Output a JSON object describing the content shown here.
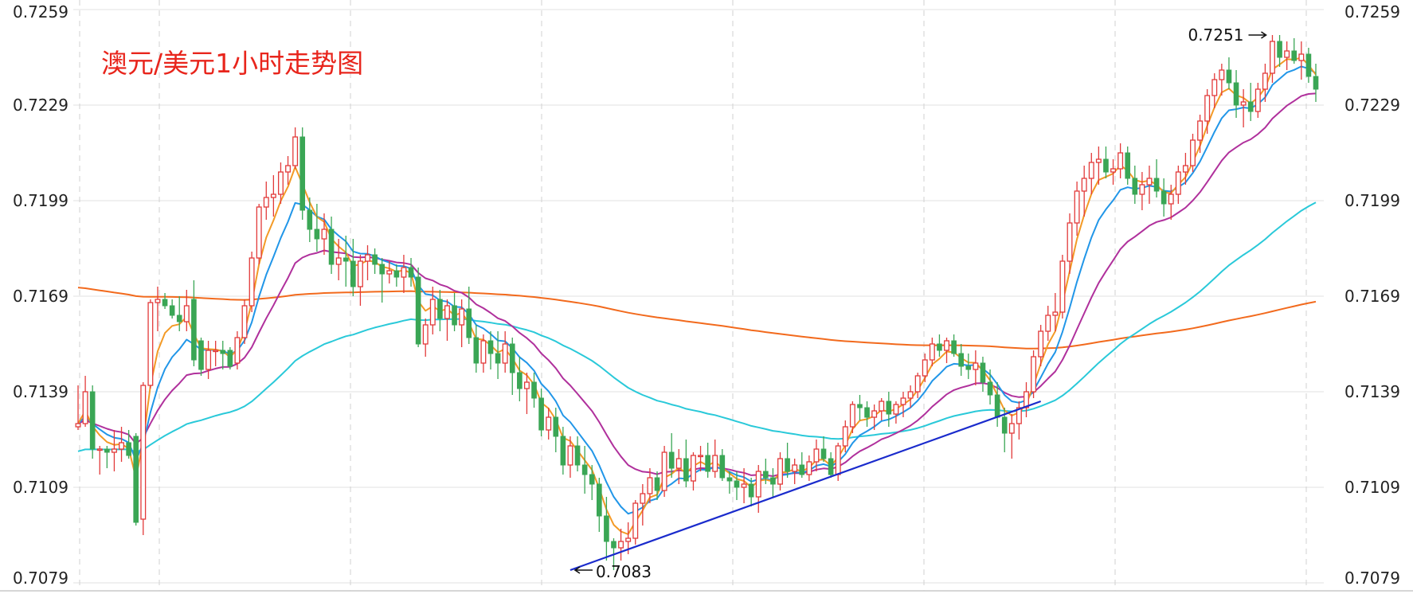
{
  "chart_data": {
    "type": "candlestick",
    "title": "澳元/美元1小时走势图",
    "xlabel": "",
    "ylabel": "",
    "ylim": [
      0.7079,
      0.7259
    ],
    "y_ticks": [
      "0.7259",
      "0.7229",
      "0.7199",
      "0.7169",
      "0.7139",
      "0.7109",
      "0.7079"
    ],
    "grid": true,
    "legend": "none",
    "annotations": [
      {
        "text": "0.7251",
        "value": 0.7251,
        "bar": 165
      },
      {
        "text": "0.7083",
        "value": 0.7083,
        "bar": 68
      }
    ],
    "trendline": {
      "start": {
        "bar": 68,
        "value": 0.7083
      },
      "end": {
        "bar": 133,
        "value": 0.7136
      }
    },
    "colors": {
      "up": "#e23a3a",
      "down": "#3aa655",
      "ma_orange": "#f39a26",
      "ma_blue": "#2196e8",
      "ma_purple": "#b0309c",
      "ma_cyan": "#2ac9d9",
      "ma_darkorange": "#f26a1d",
      "trendline": "#1a2bcc",
      "title": "#e8251c"
    },
    "candles": [
      [
        0.7128,
        0.7141,
        0.7127,
        0.7129
      ],
      [
        0.7129,
        0.7144,
        0.7128,
        0.7139
      ],
      [
        0.7139,
        0.7141,
        0.7118,
        0.7121
      ],
      [
        0.7121,
        0.7122,
        0.7113,
        0.7121
      ],
      [
        0.7121,
        0.7122,
        0.7115,
        0.712
      ],
      [
        0.712,
        0.7127,
        0.7114,
        0.7121
      ],
      [
        0.7121,
        0.7128,
        0.7117,
        0.7123
      ],
      [
        0.7123,
        0.7127,
        0.7118,
        0.7119
      ],
      [
        0.7125,
        0.7126,
        0.7097,
        0.7098
      ],
      [
        0.7099,
        0.7142,
        0.7094,
        0.7141
      ],
      [
        0.7141,
        0.7168,
        0.714,
        0.7167
      ],
      [
        0.7167,
        0.7172,
        0.7158,
        0.7168
      ],
      [
        0.7168,
        0.717,
        0.7165,
        0.7166
      ],
      [
        0.7166,
        0.7168,
        0.7162,
        0.7163
      ],
      [
        0.7163,
        0.7169,
        0.7158,
        0.7161
      ],
      [
        0.7161,
        0.7171,
        0.7158,
        0.7166
      ],
      [
        0.7168,
        0.7174,
        0.7147,
        0.7149
      ],
      [
        0.7155,
        0.7156,
        0.7144,
        0.7146
      ],
      [
        0.7146,
        0.7155,
        0.7143,
        0.7152
      ],
      [
        0.7152,
        0.7155,
        0.7147,
        0.7152
      ],
      [
        0.7152,
        0.7155,
        0.7146,
        0.7151
      ],
      [
        0.7152,
        0.7153,
        0.7146,
        0.7147
      ],
      [
        0.7148,
        0.7158,
        0.7146,
        0.7156
      ],
      [
        0.7156,
        0.7168,
        0.7154,
        0.7166
      ],
      [
        0.7166,
        0.7183,
        0.7164,
        0.7181
      ],
      [
        0.7181,
        0.7198,
        0.7179,
        0.7197
      ],
      [
        0.7197,
        0.7205,
        0.7193,
        0.72
      ],
      [
        0.72,
        0.7207,
        0.7194,
        0.7201
      ],
      [
        0.7201,
        0.7211,
        0.7198,
        0.7208
      ],
      [
        0.7208,
        0.7213,
        0.7204,
        0.721
      ],
      [
        0.721,
        0.7222,
        0.7209,
        0.7219
      ],
      [
        0.7219,
        0.7222,
        0.7193,
        0.7196
      ],
      [
        0.7196,
        0.72,
        0.7186,
        0.719
      ],
      [
        0.719,
        0.7198,
        0.7183,
        0.7187
      ],
      [
        0.7187,
        0.7195,
        0.7182,
        0.719
      ],
      [
        0.719,
        0.7194,
        0.7176,
        0.7179
      ],
      [
        0.7179,
        0.7187,
        0.7174,
        0.7181
      ],
      [
        0.7181,
        0.7188,
        0.7172,
        0.718
      ],
      [
        0.718,
        0.7187,
        0.7169,
        0.7172
      ],
      [
        0.7172,
        0.7182,
        0.7166,
        0.718
      ],
      [
        0.718,
        0.7185,
        0.7174,
        0.7182
      ],
      [
        0.7182,
        0.7184,
        0.7176,
        0.7179
      ],
      [
        0.7179,
        0.7181,
        0.7167,
        0.7176
      ],
      [
        0.7176,
        0.718,
        0.7173,
        0.7177
      ],
      [
        0.7177,
        0.7179,
        0.7172,
        0.7175
      ],
      [
        0.7175,
        0.7182,
        0.717,
        0.7178
      ],
      [
        0.7178,
        0.7181,
        0.7172,
        0.7175
      ],
      [
        0.7175,
        0.7178,
        0.7153,
        0.7154
      ],
      [
        0.7154,
        0.7162,
        0.715,
        0.716
      ],
      [
        0.716,
        0.7172,
        0.7157,
        0.7168
      ],
      [
        0.7168,
        0.7171,
        0.7158,
        0.7162
      ],
      [
        0.7162,
        0.7168,
        0.7155,
        0.7166
      ],
      [
        0.7166,
        0.717,
        0.7158,
        0.716
      ],
      [
        0.716,
        0.7168,
        0.7153,
        0.7165
      ],
      [
        0.7165,
        0.7172,
        0.7154,
        0.7156
      ],
      [
        0.7156,
        0.716,
        0.7145,
        0.7148
      ],
      [
        0.7148,
        0.7157,
        0.7145,
        0.7155
      ],
      [
        0.7155,
        0.7158,
        0.7146,
        0.7151
      ],
      [
        0.7151,
        0.7158,
        0.7143,
        0.7148
      ],
      [
        0.7148,
        0.7158,
        0.7145,
        0.7154
      ],
      [
        0.7154,
        0.7156,
        0.7138,
        0.7145
      ],
      [
        0.7145,
        0.715,
        0.7136,
        0.714
      ],
      [
        0.714,
        0.7145,
        0.7132,
        0.7142
      ],
      [
        0.7142,
        0.7145,
        0.7134,
        0.7137
      ],
      [
        0.7137,
        0.714,
        0.7125,
        0.7127
      ],
      [
        0.7127,
        0.7134,
        0.7124,
        0.7131
      ],
      [
        0.7131,
        0.7134,
        0.712,
        0.7125
      ],
      [
        0.7125,
        0.7128,
        0.7113,
        0.7116
      ],
      [
        0.7116,
        0.7125,
        0.7112,
        0.7122
      ],
      [
        0.7122,
        0.7125,
        0.7114,
        0.7116
      ],
      [
        0.7116,
        0.7122,
        0.7107,
        0.7113
      ],
      [
        0.7113,
        0.7116,
        0.7105,
        0.711
      ],
      [
        0.711,
        0.7112,
        0.7095,
        0.71
      ],
      [
        0.71,
        0.7106,
        0.7086,
        0.7092
      ],
      [
        0.7092,
        0.7093,
        0.7083,
        0.709
      ],
      [
        0.709,
        0.7096,
        0.7086,
        0.7092
      ],
      [
        0.7092,
        0.7098,
        0.7088,
        0.7093
      ],
      [
        0.7093,
        0.7105,
        0.7091,
        0.7104
      ],
      [
        0.7104,
        0.711,
        0.7097,
        0.7107
      ],
      [
        0.7107,
        0.7115,
        0.7104,
        0.7112
      ],
      [
        0.7112,
        0.7114,
        0.7105,
        0.7108
      ],
      [
        0.7108,
        0.7122,
        0.7106,
        0.712
      ],
      [
        0.712,
        0.7126,
        0.7112,
        0.7115
      ],
      [
        0.7115,
        0.7121,
        0.711,
        0.7118
      ],
      [
        0.7118,
        0.7124,
        0.7109,
        0.7111
      ],
      [
        0.7111,
        0.712,
        0.7108,
        0.7119
      ],
      [
        0.7119,
        0.7122,
        0.7114,
        0.7119
      ],
      [
        0.7119,
        0.7123,
        0.7112,
        0.7114
      ],
      [
        0.7114,
        0.7124,
        0.7112,
        0.7119
      ],
      [
        0.7119,
        0.7121,
        0.7111,
        0.7112
      ],
      [
        0.7112,
        0.7114,
        0.7107,
        0.7111
      ],
      [
        0.7111,
        0.7114,
        0.7105,
        0.7109
      ],
      [
        0.7109,
        0.7115,
        0.7104,
        0.711
      ],
      [
        0.711,
        0.7112,
        0.7103,
        0.7106
      ],
      [
        0.7106,
        0.7116,
        0.7101,
        0.7114
      ],
      [
        0.7114,
        0.7118,
        0.711,
        0.7112
      ],
      [
        0.7112,
        0.7115,
        0.7106,
        0.711
      ],
      [
        0.711,
        0.712,
        0.7108,
        0.7118
      ],
      [
        0.7118,
        0.7123,
        0.7112,
        0.7114
      ],
      [
        0.7114,
        0.7118,
        0.711,
        0.7116
      ],
      [
        0.7116,
        0.712,
        0.7112,
        0.7113
      ],
      [
        0.7113,
        0.7119,
        0.7111,
        0.7117
      ],
      [
        0.7117,
        0.7124,
        0.7114,
        0.7121
      ],
      [
        0.7121,
        0.7125,
        0.7117,
        0.7118
      ],
      [
        0.7118,
        0.712,
        0.7112,
        0.7113
      ],
      [
        0.7113,
        0.7123,
        0.7111,
        0.7122
      ],
      [
        0.7122,
        0.713,
        0.712,
        0.7128
      ],
      [
        0.7128,
        0.7136,
        0.7126,
        0.7135
      ],
      [
        0.7135,
        0.7138,
        0.713,
        0.7134
      ],
      [
        0.7134,
        0.7136,
        0.7128,
        0.7131
      ],
      [
        0.7131,
        0.7135,
        0.7127,
        0.7133
      ],
      [
        0.7133,
        0.7137,
        0.713,
        0.7136
      ],
      [
        0.7136,
        0.7139,
        0.7128,
        0.7132
      ],
      [
        0.7132,
        0.7136,
        0.7129,
        0.7135
      ],
      [
        0.7135,
        0.7139,
        0.7131,
        0.7137
      ],
      [
        0.7137,
        0.7141,
        0.7134,
        0.7139
      ],
      [
        0.7139,
        0.7145,
        0.7137,
        0.7144
      ],
      [
        0.7144,
        0.7151,
        0.7142,
        0.7149
      ],
      [
        0.7149,
        0.7156,
        0.7147,
        0.7154
      ],
      [
        0.7154,
        0.7157,
        0.715,
        0.7152
      ],
      [
        0.7152,
        0.7156,
        0.7148,
        0.7155
      ],
      [
        0.7155,
        0.7157,
        0.715,
        0.7151
      ],
      [
        0.7151,
        0.7154,
        0.7144,
        0.7147
      ],
      [
        0.7147,
        0.7151,
        0.7143,
        0.7146
      ],
      [
        0.7146,
        0.7152,
        0.7141,
        0.7148
      ],
      [
        0.7148,
        0.715,
        0.7139,
        0.7142
      ],
      [
        0.7142,
        0.7146,
        0.7135,
        0.7138
      ],
      [
        0.7138,
        0.7142,
        0.7128,
        0.7131
      ],
      [
        0.7131,
        0.7134,
        0.712,
        0.7126
      ],
      [
        0.7126,
        0.7132,
        0.7118,
        0.7129
      ],
      [
        0.7129,
        0.7136,
        0.7124,
        0.7134
      ],
      [
        0.7134,
        0.7142,
        0.7131,
        0.7139
      ],
      [
        0.7139,
        0.7152,
        0.7137,
        0.715
      ],
      [
        0.715,
        0.716,
        0.7147,
        0.7158
      ],
      [
        0.7158,
        0.7166,
        0.7155,
        0.7163
      ],
      [
        0.7163,
        0.717,
        0.7158,
        0.7164
      ],
      [
        0.7164,
        0.7182,
        0.7162,
        0.718
      ],
      [
        0.718,
        0.7195,
        0.7176,
        0.7192
      ],
      [
        0.7192,
        0.7205,
        0.7188,
        0.7202
      ],
      [
        0.7202,
        0.721,
        0.7194,
        0.7206
      ],
      [
        0.7206,
        0.7214,
        0.7201,
        0.7211
      ],
      [
        0.7211,
        0.7216,
        0.7204,
        0.7212
      ],
      [
        0.7212,
        0.7216,
        0.7206,
        0.7208
      ],
      [
        0.7208,
        0.7212,
        0.7204,
        0.7209
      ],
      [
        0.7209,
        0.7217,
        0.7206,
        0.7214
      ],
      [
        0.7214,
        0.7216,
        0.7204,
        0.7206
      ],
      [
        0.7206,
        0.721,
        0.7198,
        0.7201
      ],
      [
        0.7201,
        0.7208,
        0.7196,
        0.7204
      ],
      [
        0.7204,
        0.721,
        0.7198,
        0.7206
      ],
      [
        0.7206,
        0.7212,
        0.72,
        0.7202
      ],
      [
        0.7202,
        0.7206,
        0.7194,
        0.7198
      ],
      [
        0.7198,
        0.7204,
        0.7193,
        0.7201
      ],
      [
        0.7201,
        0.721,
        0.7198,
        0.7208
      ],
      [
        0.7208,
        0.7214,
        0.7204,
        0.721
      ],
      [
        0.721,
        0.722,
        0.7208,
        0.7218
      ],
      [
        0.7218,
        0.7226,
        0.7214,
        0.7224
      ],
      [
        0.7224,
        0.7234,
        0.722,
        0.7232
      ],
      [
        0.7232,
        0.7239,
        0.7228,
        0.7237
      ],
      [
        0.7237,
        0.7242,
        0.7232,
        0.724
      ],
      [
        0.724,
        0.7244,
        0.7234,
        0.7236
      ],
      [
        0.7236,
        0.724,
        0.7225,
        0.7229
      ],
      [
        0.7229,
        0.7234,
        0.7222,
        0.723
      ],
      [
        0.723,
        0.7236,
        0.7224,
        0.7227
      ],
      [
        0.7227,
        0.7236,
        0.7225,
        0.7234
      ],
      [
        0.7234,
        0.7242,
        0.723,
        0.7239
      ],
      [
        0.7239,
        0.7251,
        0.7236,
        0.7249
      ],
      [
        0.7249,
        0.7251,
        0.7241,
        0.7244
      ],
      [
        0.7244,
        0.7249,
        0.724,
        0.7246
      ],
      [
        0.7246,
        0.725,
        0.7242,
        0.7243
      ],
      [
        0.7243,
        0.7249,
        0.7237,
        0.7245
      ],
      [
        0.7245,
        0.7247,
        0.7236,
        0.7238
      ],
      [
        0.7238,
        0.7242,
        0.723,
        0.7234
      ]
    ]
  }
}
